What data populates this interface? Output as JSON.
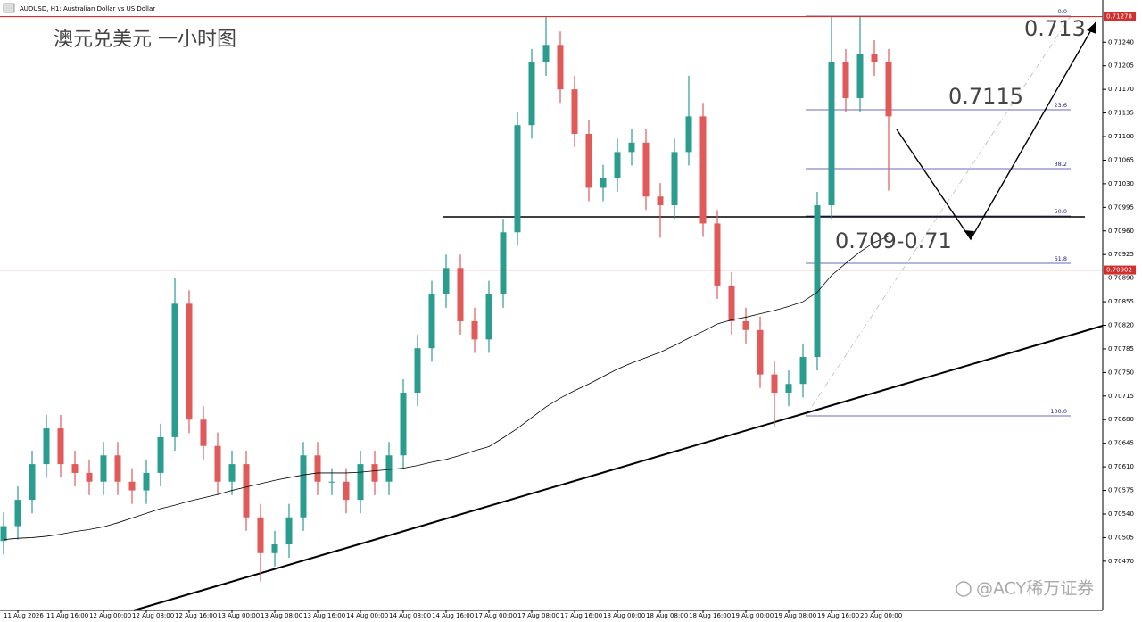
{
  "chart_data": {
    "type": "candlestick",
    "title": "AUDUSD, H1:  Australian Dollar vs US Dollar",
    "annotations": {
      "heading": "澳元兑美元 一小时图",
      "target": "0.713",
      "level": "0.7115",
      "zone": "0.709-0.71",
      "watermark": "@ACY稀万证券"
    },
    "fib_labels": [
      "0.0",
      "23.6",
      "38.2",
      "50.0",
      "61.8",
      "100.0"
    ],
    "up_color": "#2a9d8f",
    "down_color": "#e05a5a",
    "ma_color": "#000000",
    "line_color": "#d32f2f",
    "categories": [
      null,
      "11 Aug 2026",
      null,
      null,
      "11 Aug 16:00",
      null,
      null,
      "12 Aug 00:00",
      null,
      null,
      "12 Aug 08:00",
      null,
      null,
      "12 Aug 16:00",
      null,
      null,
      "13 Aug 00:00",
      null,
      null,
      "13 Aug 08:00",
      null,
      null,
      "13 Aug 16:00",
      null,
      null,
      "14 Aug 00:00",
      null,
      null,
      "14 Aug 08:00",
      null,
      null,
      "14 Aug 16:00",
      null,
      null,
      "17 Aug 00:00",
      null,
      null,
      "17 Aug 08:00",
      null,
      null,
      "17 Aug 16:00",
      null,
      null,
      "18 Aug 00:00",
      null,
      null,
      "18 Aug 08:00",
      null,
      null,
      "18 Aug 16:00",
      null,
      null,
      "19 Aug 00:00",
      null,
      null,
      "19 Aug 08:00",
      null,
      null,
      "19 Aug 16:00",
      null,
      null,
      "20 Aug 00:00",
      null
    ],
    "open": [
      0.705,
      0.70522,
      0.70561,
      0.70614,
      0.70667,
      0.70614,
      0.70601,
      0.70588,
      0.70627,
      0.70588,
      0.70575,
      0.70601,
      0.70654,
      0.70852,
      0.7068,
      0.70641,
      0.70588,
      0.70614,
      0.70535,
      0.70482,
      0.70495,
      0.70535,
      0.70627,
      0.70588,
      0.70588,
      0.70561,
      0.70614,
      0.70588,
      0.70627,
      0.7072,
      0.70786,
      0.70866,
      0.70905,
      0.70826,
      0.70799,
      0.70866,
      0.70958,
      0.71117,
      0.7121,
      0.71236,
      0.7117,
      0.71104,
      0.71024,
      0.71038,
      0.71077,
      0.71091,
      0.71011,
      0.70998,
      0.71077,
      0.7113,
      0.70971,
      0.70879,
      0.70826,
      0.70813,
      0.70747,
      0.7072,
      0.70733,
      0.70773,
      0.70998,
      0.7121,
      0.71157,
      0.71223,
      0.7121
    ],
    "high": [
      0.70542,
      0.70581,
      0.70634,
      0.70687,
      0.70687,
      0.70634,
      0.70621,
      0.70647,
      0.70647,
      0.70608,
      0.70621,
      0.70674,
      0.7089,
      0.70872,
      0.707,
      0.70661,
      0.70634,
      0.70634,
      0.70555,
      0.70515,
      0.70555,
      0.70647,
      0.70647,
      0.70608,
      0.70608,
      0.70634,
      0.70634,
      0.70647,
      0.7074,
      0.70806,
      0.70886,
      0.70925,
      0.70925,
      0.70846,
      0.70886,
      0.70978,
      0.71137,
      0.7123,
      0.71278,
      0.71256,
      0.7119,
      0.71124,
      0.71058,
      0.71097,
      0.71111,
      0.71111,
      0.71031,
      0.71097,
      0.7119,
      0.7115,
      0.70991,
      0.70899,
      0.70846,
      0.70833,
      0.70767,
      0.70753,
      0.70793,
      0.71018,
      0.71278,
      0.7123,
      0.71278,
      0.71243,
      0.7123
    ],
    "low": [
      0.7048,
      0.70502,
      0.70541,
      0.70594,
      0.70594,
      0.70581,
      0.70568,
      0.70568,
      0.70568,
      0.70555,
      0.70555,
      0.70581,
      0.70634,
      0.7066,
      0.70621,
      0.70568,
      0.70568,
      0.70515,
      0.7044,
      0.70462,
      0.70475,
      0.70515,
      0.70568,
      0.70568,
      0.70541,
      0.70541,
      0.70568,
      0.70568,
      0.70607,
      0.707,
      0.70766,
      0.70846,
      0.70806,
      0.70779,
      0.70779,
      0.70846,
      0.70938,
      0.71097,
      0.7119,
      0.7115,
      0.71084,
      0.71004,
      0.71004,
      0.71018,
      0.71057,
      0.70991,
      0.7095,
      0.70978,
      0.71057,
      0.70951,
      0.70859,
      0.70806,
      0.70793,
      0.70727,
      0.7067,
      0.707,
      0.70713,
      0.70753,
      0.70978,
      0.71137,
      0.71137,
      0.7119,
      0.7102
    ],
    "close": [
      0.70522,
      0.70561,
      0.70614,
      0.70667,
      0.70614,
      0.70601,
      0.70588,
      0.70627,
      0.70588,
      0.70575,
      0.70601,
      0.70654,
      0.70852,
      0.7068,
      0.70641,
      0.70588,
      0.70614,
      0.70535,
      0.70482,
      0.70495,
      0.70535,
      0.70627,
      0.70588,
      0.70588,
      0.70561,
      0.70614,
      0.70588,
      0.70627,
      0.7072,
      0.70786,
      0.70866,
      0.70905,
      0.70826,
      0.70799,
      0.70866,
      0.70958,
      0.71117,
      0.7121,
      0.71236,
      0.7117,
      0.71104,
      0.71024,
      0.71038,
      0.71077,
      0.71091,
      0.71011,
      0.70998,
      0.71077,
      0.7113,
      0.70971,
      0.70879,
      0.70826,
      0.70813,
      0.70747,
      0.7072,
      0.70733,
      0.70773,
      0.70998,
      0.7121,
      0.71157,
      0.71223,
      0.7121,
      0.7113
    ],
    "moving_average": [
      0.70502,
      0.70504,
      0.70505,
      0.70507,
      0.7051,
      0.70514,
      0.70517,
      0.70521,
      0.70527,
      0.70534,
      0.70541,
      0.70548,
      0.70553,
      0.70559,
      0.70564,
      0.70569,
      0.70575,
      0.7058,
      0.70585,
      0.7059,
      0.70594,
      0.70598,
      0.70601,
      0.70601,
      0.70601,
      0.70602,
      0.70604,
      0.70606,
      0.70608,
      0.70612,
      0.70617,
      0.70621,
      0.70627,
      0.70634,
      0.7064,
      0.70653,
      0.70667,
      0.70683,
      0.70699,
      0.70712,
      0.70723,
      0.70733,
      0.70744,
      0.70755,
      0.70764,
      0.70772,
      0.7078,
      0.7079,
      0.70801,
      0.70811,
      0.70822,
      0.70828,
      0.70832,
      0.70837,
      0.70842,
      0.70848,
      0.70855,
      0.70869,
      0.70894,
      0.70912,
      0.70929,
      0.70943,
      0.70952
    ],
    "price_lines": [
      {
        "value": 0.71278,
        "label": "0.71278"
      },
      {
        "value": 0.70902,
        "label": "0.70902"
      }
    ],
    "ylim": [
      0.70397,
      0.71292
    ],
    "yticks": [
      {
        "value": 0.7047,
        "label": "0.70470"
      },
      {
        "value": 0.70505,
        "label": "0.70505"
      },
      {
        "value": 0.7054,
        "label": "0.70540"
      },
      {
        "value": 0.70575,
        "label": "0.70575"
      },
      {
        "value": 0.7061,
        "label": "0.70610"
      },
      {
        "value": 0.70645,
        "label": "0.70645"
      },
      {
        "value": 0.7068,
        "label": "0.70680"
      },
      {
        "value": 0.70715,
        "label": "0.70715"
      },
      {
        "value": 0.7075,
        "label": "0.70750"
      },
      {
        "value": 0.70785,
        "label": "0.70785"
      },
      {
        "value": 0.7082,
        "label": "0.70820"
      },
      {
        "value": 0.70855,
        "label": "0.70855"
      },
      {
        "value": 0.7089,
        "label": "0.70890"
      },
      {
        "value": 0.70925,
        "label": "0.70925"
      },
      {
        "value": 0.7096,
        "label": "0.70960"
      },
      {
        "value": 0.70995,
        "label": "0.70995"
      },
      {
        "value": 0.7103,
        "label": "0.71030"
      },
      {
        "value": 0.71065,
        "label": "0.71065"
      },
      {
        "value": 0.711,
        "label": "0.71100"
      },
      {
        "value": 0.71135,
        "label": "0.71135"
      },
      {
        "value": 0.7117,
        "label": "0.71170"
      },
      {
        "value": 0.71205,
        "label": "0.71205"
      },
      {
        "value": 0.7124,
        "label": "0.71240"
      }
    ]
  }
}
